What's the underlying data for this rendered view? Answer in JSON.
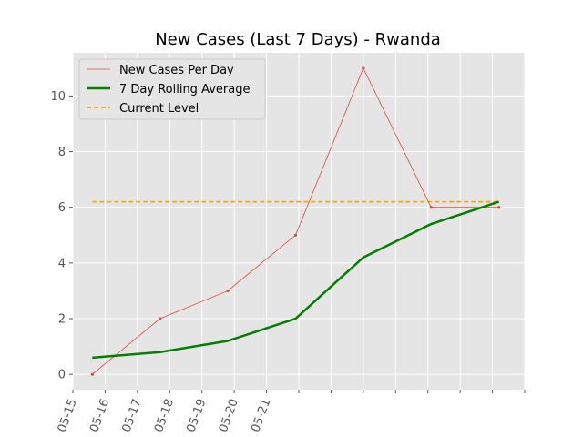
{
  "chart_data": {
    "type": "line",
    "title": "New Cases (Last 7 Days) - Rwanda",
    "xlabel": "",
    "ylabel": "",
    "x_tick_labels": [
      "05-15",
      "05-16",
      "05-17",
      "05-18",
      "05-19",
      "05-20",
      "05-21",
      "",
      "",
      "",
      "",
      "",
      "",
      "",
      ""
    ],
    "y_ticks": [
      0,
      2,
      4,
      6,
      8,
      10
    ],
    "ylim": [
      -0.55,
      11.55
    ],
    "grid": true,
    "legend_position": "top-left",
    "x_days": [
      0.6,
      2.7,
      4.8,
      6.9,
      9.0,
      11.1,
      13.2
    ],
    "series": [
      {
        "name": "New Cases Per Day",
        "style": "thin-line-dots",
        "color": "#E24A33",
        "values": [
          0,
          2,
          3,
          5,
          11,
          6,
          6
        ]
      },
      {
        "name": "7 Day Rolling Average",
        "style": "thick-line",
        "color": "#008000",
        "values": [
          0.6,
          0.8,
          1.2,
          2.0,
          4.2,
          5.4,
          6.2
        ]
      },
      {
        "name": "Current Level",
        "style": "dashed",
        "color": "#FFA500",
        "values": [
          6.2,
          6.2
        ]
      }
    ]
  }
}
